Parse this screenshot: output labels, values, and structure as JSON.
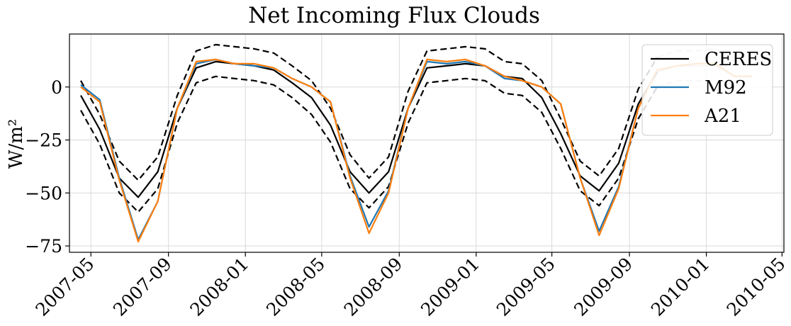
{
  "chart_data": {
    "type": "line",
    "title": "Net Incoming Flux Clouds",
    "ylabel": "W/m²",
    "xlabel": "",
    "ylim": [
      -78,
      25
    ],
    "xlim": [
      "2007-03-28",
      "2010-05-04"
    ],
    "yticks": [
      0,
      -25,
      -50,
      -75
    ],
    "ytick_labels": [
      "0",
      "−25",
      "−50",
      "−75"
    ],
    "xticks": [
      "2007-05-01",
      "2007-09-01",
      "2008-01-01",
      "2008-05-01",
      "2008-09-01",
      "2009-01-01",
      "2009-05-01",
      "2009-09-01",
      "2010-01-01",
      "2010-05-01"
    ],
    "xtick_labels": [
      "2007-05",
      "2007-09",
      "2008-01",
      "2008-05",
      "2008-09",
      "2009-01",
      "2009-05",
      "2009-09",
      "2010-01",
      "2010-05"
    ],
    "grid": true,
    "legend_position": "top-right",
    "colors": {
      "ceres": "#000000",
      "m92": "#1f77b4",
      "a21": "#ff7f0e",
      "ceres_ext": "#c8c8c8"
    },
    "x": [
      "2007-04-15",
      "2007-05-15",
      "2007-06-15",
      "2007-07-15",
      "2007-08-15",
      "2007-09-15",
      "2007-10-15",
      "2007-11-15",
      "2007-12-15",
      "2008-01-15",
      "2008-02-15",
      "2008-03-15",
      "2008-04-15",
      "2008-05-15",
      "2008-06-15",
      "2008-07-15",
      "2008-08-15",
      "2008-09-15",
      "2008-10-15",
      "2008-11-15",
      "2008-12-15",
      "2009-01-15",
      "2009-02-15",
      "2009-03-15",
      "2009-04-15",
      "2009-05-15",
      "2009-06-15",
      "2009-07-15",
      "2009-08-15",
      "2009-09-15",
      "2009-10-15",
      "2009-11-15",
      "2009-12-15",
      "2010-01-15",
      "2010-02-15",
      "2010-03-15"
    ],
    "series": [
      {
        "name": "CERES",
        "style": "solid",
        "values": [
          -4,
          -20,
          -43,
          -52,
          -40,
          -10,
          9,
          12,
          11,
          10,
          8,
          2,
          -5,
          -18,
          -40,
          -50,
          -40,
          -10,
          9,
          10,
          11,
          10,
          5,
          4,
          -5,
          -22,
          -42,
          -49,
          -36,
          -8,
          7,
          10,
          10,
          10,
          5,
          5
        ]
      },
      {
        "name": "",
        "style": "dashed",
        "values": [
          3,
          -13,
          -35,
          -44,
          -33,
          -4,
          17,
          20,
          19,
          18,
          16,
          10,
          3,
          -10,
          -32,
          -43,
          -33,
          -2,
          17,
          18,
          19,
          18,
          12,
          11,
          3,
          -15,
          -35,
          -42,
          -29,
          -1,
          14,
          17,
          17,
          18,
          12,
          12
        ]
      },
      {
        "name": "",
        "style": "dashed",
        "values": [
          -11,
          -27,
          -50,
          -59,
          -48,
          -17,
          2,
          5,
          4,
          3,
          1,
          -5,
          -13,
          -26,
          -48,
          -57,
          -47,
          -17,
          2,
          3,
          4,
          3,
          -3,
          -4,
          -12,
          -29,
          -49,
          -56,
          -43,
          -15,
          0,
          3,
          3,
          3,
          -2,
          -2
        ]
      },
      {
        "name": "M92",
        "style": "solid",
        "values": [
          1,
          -6,
          -43,
          -72,
          -54,
          -10,
          11,
          13,
          11,
          10,
          9,
          4,
          0,
          -7,
          -42,
          -66,
          -49,
          -10,
          12,
          11,
          12,
          10,
          4,
          3,
          0,
          -8,
          -43,
          -68,
          -47,
          -10,
          8,
          10,
          11,
          11,
          5,
          5
        ]
      },
      {
        "name": "A21",
        "style": "solid",
        "values": [
          0,
          -7,
          -44,
          -73,
          -54,
          -10,
          12,
          13,
          11,
          11,
          9,
          4,
          0,
          -7,
          -43,
          -69,
          -50,
          -10,
          13,
          12,
          13,
          10,
          5,
          3,
          0,
          -8,
          -43,
          -70,
          -48,
          -10,
          8,
          10,
          11,
          11,
          5,
          5
        ]
      }
    ],
    "ceres_ext_start_index": 30
  }
}
